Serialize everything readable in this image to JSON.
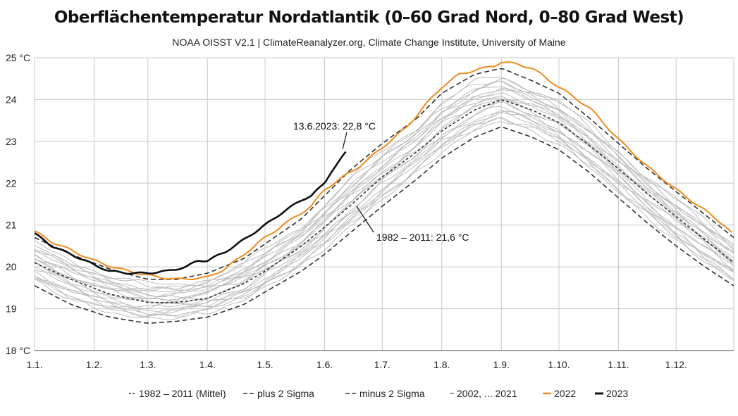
{
  "title": "Oberflächentemperatur Nordatlantik (0–60 Grad Nord, 0–80 Grad West)",
  "subtitle": "NOAA OISST V2.1 | ClimateReanalyzer.org, Climate Change Institute, University of Maine",
  "legend": [
    {
      "label": "1982 – 2011 (Mittel)",
      "style": "dash-small"
    },
    {
      "label": "plus 2 Sigma",
      "style": "dash-large"
    },
    {
      "label": "minus 2 Sigma",
      "style": "dash-large"
    },
    {
      "label": "2002, ... 2021",
      "style": "gray"
    },
    {
      "label": "2022",
      "style": "orange"
    },
    {
      "label": "2023",
      "style": "black"
    }
  ],
  "annotations": {
    "a2023": "13.6.2023: 22,8 °C",
    "mean": "1982 – 2011: 21,6 °C"
  },
  "colors": {
    "y2022": "#f08a1c",
    "y2023": "#111111",
    "gray": "#bdbdbd",
    "stat": "#333333",
    "grid": "#c8c8c8"
  },
  "chart_data": {
    "type": "line",
    "title": "Oberflächentemperatur Nordatlantik (0–60 Grad Nord, 0–80 Grad West)",
    "xlabel": "",
    "ylabel": "",
    "x_unit": "day of year",
    "xlim": [
      1,
      365
    ],
    "ylim": [
      18,
      25
    ],
    "x_ticks": [
      {
        "day": 1,
        "label": "1.1."
      },
      {
        "day": 32,
        "label": "1.2."
      },
      {
        "day": 60,
        "label": "1.3."
      },
      {
        "day": 91,
        "label": "1.4."
      },
      {
        "day": 121,
        "label": "1.5."
      },
      {
        "day": 152,
        "label": "1.6."
      },
      {
        "day": 182,
        "label": "1.7."
      },
      {
        "day": 213,
        "label": "1.8."
      },
      {
        "day": 244,
        "label": "1.9."
      },
      {
        "day": 274,
        "label": "1.10."
      },
      {
        "day": 305,
        "label": "1.11."
      },
      {
        "day": 335,
        "label": "1.12."
      }
    ],
    "y_ticks": [
      {
        "value": 18,
        "label": "18 °C"
      },
      {
        "value": 19,
        "label": "19"
      },
      {
        "value": 20,
        "label": "20"
      },
      {
        "value": 21,
        "label": "21"
      },
      {
        "value": 22,
        "label": "22"
      },
      {
        "value": 23,
        "label": "23"
      },
      {
        "value": 24,
        "label": "24"
      },
      {
        "value": 25,
        "label": "25 °C"
      }
    ],
    "grid": true,
    "legend_position": "bottom",
    "gray_band": {
      "series_label": "2002, ... 2021",
      "lower": "minus 2 Sigma",
      "upper": "plus 2 Sigma"
    },
    "series": [
      {
        "name": "1982 – 2011 (Mittel)",
        "style": "dash-small",
        "x": [
          1,
          20,
          40,
          60,
          75,
          91,
          110,
          121,
          140,
          152,
          165,
          182,
          200,
          213,
          230,
          244,
          260,
          274,
          290,
          305,
          320,
          335,
          350,
          365
        ],
        "y": [
          20.1,
          19.7,
          19.35,
          19.15,
          19.15,
          19.25,
          19.6,
          19.9,
          20.5,
          20.95,
          21.45,
          22.15,
          22.75,
          23.25,
          23.75,
          24.0,
          23.75,
          23.45,
          22.9,
          22.35,
          21.75,
          21.2,
          20.65,
          20.1
        ]
      },
      {
        "name": "plus 2 Sigma",
        "style": "dash-large",
        "x": [
          1,
          20,
          40,
          60,
          75,
          91,
          110,
          121,
          140,
          152,
          165,
          182,
          200,
          213,
          230,
          244,
          260,
          274,
          290,
          305,
          320,
          335,
          350,
          365
        ],
        "y": [
          20.7,
          20.3,
          19.95,
          19.7,
          19.7,
          19.85,
          20.2,
          20.55,
          21.15,
          21.7,
          22.3,
          22.95,
          23.55,
          24.15,
          24.6,
          24.75,
          24.45,
          24.15,
          23.55,
          22.95,
          22.35,
          21.8,
          21.25,
          20.7
        ]
      },
      {
        "name": "minus 2 Sigma",
        "style": "dash-large",
        "x": [
          1,
          20,
          40,
          60,
          75,
          91,
          110,
          121,
          140,
          152,
          165,
          182,
          200,
          213,
          230,
          244,
          260,
          274,
          290,
          305,
          320,
          335,
          350,
          365
        ],
        "y": [
          19.55,
          19.1,
          18.8,
          18.65,
          18.7,
          18.8,
          19.1,
          19.4,
          19.9,
          20.3,
          20.8,
          21.45,
          22.1,
          22.6,
          23.1,
          23.35,
          23.1,
          22.8,
          22.25,
          21.65,
          21.05,
          20.5,
          20.0,
          19.55
        ]
      },
      {
        "name": "2022",
        "style": "orange",
        "x": [
          1,
          10,
          20,
          32,
          45,
          60,
          75,
          91,
          100,
          110,
          121,
          132,
          145,
          152,
          160,
          170,
          182,
          195,
          205,
          213,
          222,
          230,
          240,
          244,
          252,
          260,
          274,
          290,
          305,
          320,
          335,
          350,
          360,
          365
        ],
        "y": [
          20.85,
          20.6,
          20.4,
          20.15,
          19.95,
          19.8,
          19.7,
          19.75,
          19.95,
          20.3,
          20.7,
          21.05,
          21.45,
          21.85,
          22.1,
          22.4,
          22.85,
          23.35,
          23.9,
          24.3,
          24.6,
          24.7,
          24.8,
          24.9,
          24.85,
          24.75,
          24.3,
          23.8,
          23.05,
          22.4,
          21.85,
          21.35,
          21.0,
          20.75
        ]
      },
      {
        "name": "2023",
        "style": "black",
        "x": [
          1,
          10,
          20,
          32,
          40,
          50,
          60,
          70,
          80,
          86,
          91,
          100,
          110,
          121,
          130,
          140,
          145,
          152,
          155,
          160,
          164
        ],
        "y": [
          20.8,
          20.5,
          20.3,
          20.05,
          19.9,
          19.85,
          19.85,
          19.9,
          20.0,
          20.15,
          20.15,
          20.35,
          20.65,
          21.0,
          21.3,
          21.6,
          21.7,
          22.0,
          22.25,
          22.55,
          22.8
        ]
      }
    ]
  }
}
